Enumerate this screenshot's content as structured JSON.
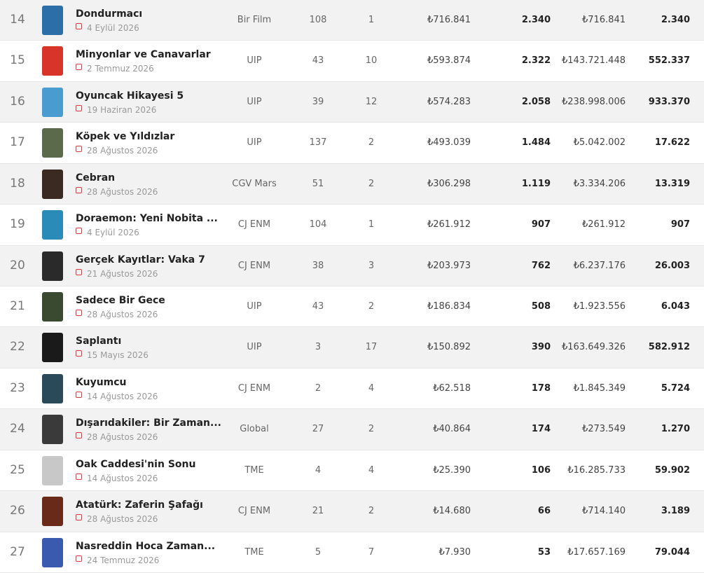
{
  "table": {
    "rows": [
      [
        "14",
        "Dondurmacı",
        "4 Eylül 2026",
        "Bir Film",
        "108",
        "1",
        "₺716.841",
        "2.340",
        "₺716.841",
        "2.340"
      ],
      [
        "15",
        "Minyonlar ve Canavarlar",
        "2 Temmuz 2026",
        "UIP",
        "43",
        "10",
        "₺593.874",
        "2.322",
        "₺143.721.448",
        "552.337"
      ],
      [
        "16",
        "Oyuncak Hikayesi 5",
        "19 Haziran 2026",
        "UIP",
        "39",
        "12",
        "₺574.283",
        "2.058",
        "₺238.998.006",
        "933.370"
      ],
      [
        "17",
        "Köpek ve Yıldızlar",
        "28 Ağustos 2026",
        "UIP",
        "137",
        "2",
        "₺493.039",
        "1.484",
        "₺5.042.002",
        "17.622"
      ],
      [
        "18",
        "Cebran",
        "28 Ağustos 2026",
        "CGV Mars",
        "51",
        "2",
        "₺306.298",
        "1.119",
        "₺3.334.206",
        "13.319"
      ],
      [
        "19",
        "Doraemon: Yeni Nobita ...",
        "4 Eylül 2026",
        "CJ ENM",
        "104",
        "1",
        "₺261.912",
        "907",
        "₺261.912",
        "907"
      ],
      [
        "20",
        "Gerçek Kayıtlar: Vaka 7",
        "21 Ağustos 2026",
        "CJ ENM",
        "38",
        "3",
        "₺203.973",
        "762",
        "₺6.237.176",
        "26.003"
      ],
      [
        "21",
        "Sadece Bir Gece",
        "28 Ağustos 2026",
        "UIP",
        "43",
        "2",
        "₺186.834",
        "508",
        "₺1.923.556",
        "6.043"
      ],
      [
        "22",
        "Saplantı",
        "15 Mayıs 2026",
        "UIP",
        "3",
        "17",
        "₺150.892",
        "390",
        "₺163.649.326",
        "582.912"
      ],
      [
        "23",
        "Kuyumcu",
        "14 Ağustos 2026",
        "CJ ENM",
        "2",
        "4",
        "₺62.518",
        "178",
        "₺1.845.349",
        "5.724"
      ],
      [
        "24",
        "Dışarıdakiler: Bir Zaman...",
        "28 Ağustos 2026",
        "Global",
        "27",
        "2",
        "₺40.864",
        "174",
        "₺273.549",
        "1.270"
      ],
      [
        "25",
        "Oak Caddesi'nin Sonu",
        "14 Ağustos 2026",
        "TME",
        "4",
        "4",
        "₺25.390",
        "106",
        "₺16.285.733",
        "59.902"
      ],
      [
        "26",
        "Atatürk: Zaferin Şafağı",
        "28 Ağustos 2026",
        "CJ ENM",
        "21",
        "2",
        "₺14.680",
        "66",
        "₺714.140",
        "3.189"
      ],
      [
        "27",
        "Nasreddin Hoca Zaman...",
        "24 Temmuz 2026",
        "TME",
        "5",
        "7",
        "₺7.930",
        "53",
        "₺17.657.169",
        "79.044"
      ]
    ]
  }
}
